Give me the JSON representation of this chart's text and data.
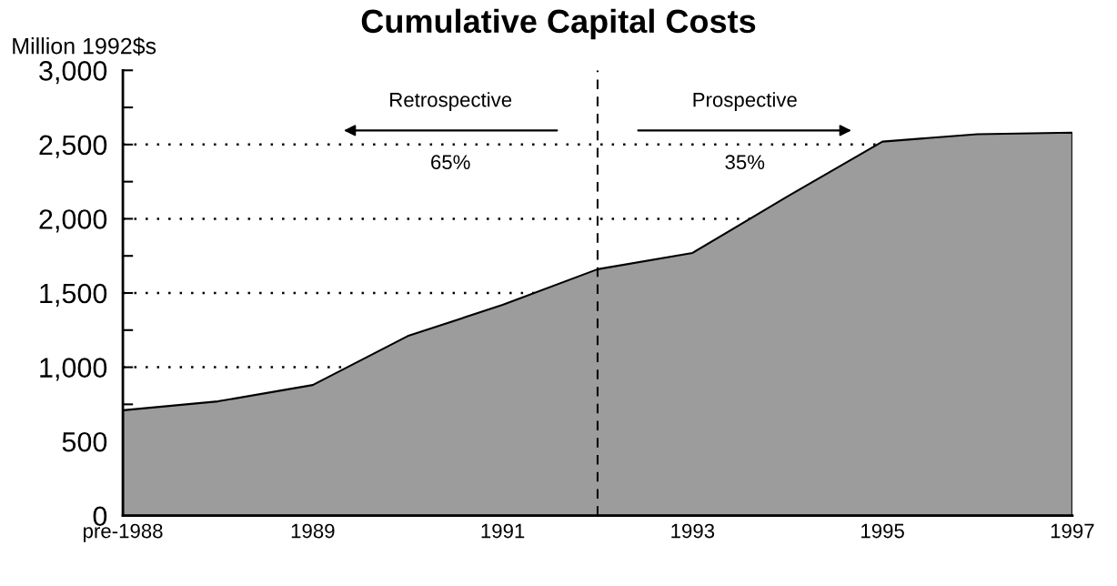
{
  "chart_data": {
    "type": "area",
    "title": "Cumulative Capital Costs",
    "ylabel": "Million 1992$s",
    "x": [
      1987,
      1988,
      1989,
      1990,
      1991,
      1992,
      1993,
      1994,
      1995,
      1996,
      1997
    ],
    "series": [
      {
        "color": "#9c9c9c",
        "values": [
          710,
          770,
          880,
          1210,
          1420,
          1660,
          1770,
          2150,
          2520,
          2570,
          2580
        ]
      }
    ],
    "xlim": [
      1987,
      1997
    ],
    "xticks": [
      {
        "value": 1987,
        "label": "pre-1988"
      },
      1989,
      1991,
      1993,
      1995,
      1997
    ],
    "ylim": [
      0,
      3000
    ],
    "yticks": [
      0,
      {
        "value": 250,
        "label": null
      },
      500,
      {
        "value": 750,
        "label": null
      },
      {
        "value": 1000,
        "label": "1,000"
      },
      {
        "value": 1250,
        "label": null
      },
      {
        "value": 1500,
        "label": "1,500"
      },
      {
        "value": 1750,
        "label": null
      },
      {
        "value": 2000,
        "label": "2,000"
      },
      {
        "value": 2250,
        "label": null
      },
      {
        "value": 2500,
        "label": "2,500"
      },
      {
        "value": 2750,
        "label": null
      },
      {
        "value": 3000,
        "label": "3,000"
      }
    ],
    "ref_lines": [
      {
        "axis": "y",
        "value": 1000,
        "line_style": "dotted"
      },
      {
        "axis": "y",
        "value": 1500,
        "line_style": "dotted"
      },
      {
        "axis": "y",
        "value": 2000,
        "line_style": "dotted"
      },
      {
        "axis": "y",
        "value": 2500,
        "line_style": "dotted"
      },
      {
        "axis": "x",
        "value": 1992,
        "line_style": "dashed"
      }
    ],
    "annotations": [
      "Retrospective",
      "65%",
      "Prospective",
      "35%"
    ],
    "grid": false,
    "legend": false
  }
}
